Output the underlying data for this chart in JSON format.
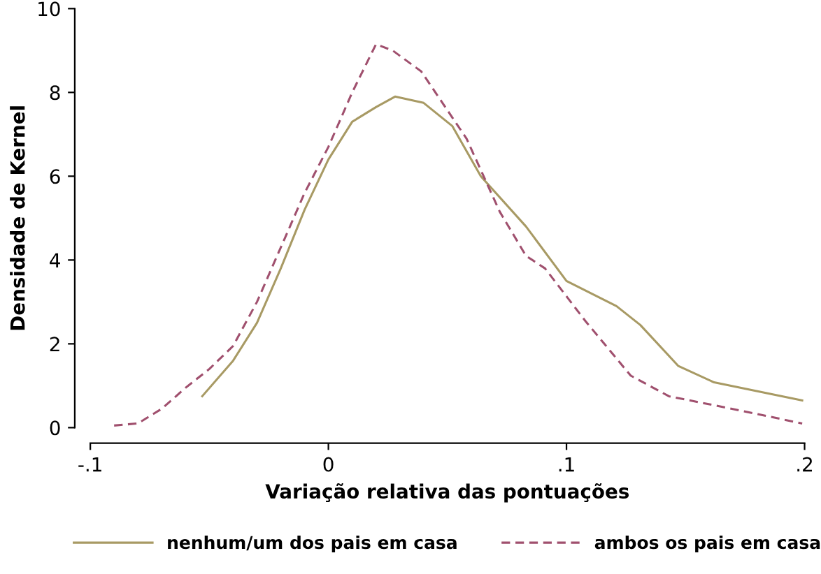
{
  "chart_data": {
    "type": "line",
    "xlabel": "Variação relativa das pontuações",
    "ylabel": "Densidade de Kernel",
    "xlim": [
      -0.1,
      0.2
    ],
    "xticks": [
      {
        "value": -0.1,
        "label": "-.1"
      },
      0,
      {
        "value": 0.1,
        "label": ".1"
      },
      {
        "value": 0.2,
        "label": ".2"
      }
    ],
    "ylim": [
      0,
      10
    ],
    "yticks": [
      0,
      2,
      4,
      6,
      8,
      10
    ],
    "grid": false,
    "legend": "bottom",
    "series": [
      {
        "name": "nenhum/um dos pais em casa",
        "color": "#a89a64",
        "line_style": "solid",
        "x": [
          -0.053,
          -0.04,
          -0.03,
          -0.02,
          -0.01,
          0,
          0.01,
          0.02,
          0.028,
          0.04,
          0.052,
          0.064,
          0.083,
          0.1,
          0.121,
          0.131,
          0.147,
          0.162,
          0.199
        ],
        "values": [
          0.75,
          1.6,
          2.5,
          3.8,
          5.2,
          6.4,
          7.3,
          7.65,
          7.9,
          7.75,
          7.2,
          6.0,
          4.8,
          3.5,
          2.9,
          2.45,
          1.47,
          1.08,
          0.65
        ]
      },
      {
        "name": "ambos os pais em casa",
        "color": "#a0506e",
        "line_style": "dashed",
        "x": [
          -0.09,
          -0.08,
          -0.07,
          -0.06,
          -0.05,
          -0.04,
          -0.03,
          -0.02,
          -0.01,
          0,
          0.01,
          0.02,
          0.027,
          0.039,
          0.058,
          0.072,
          0.083,
          0.091,
          0.108,
          0.127,
          0.143,
          0.172,
          0.199
        ],
        "values": [
          0.05,
          0.1,
          0.45,
          0.95,
          1.4,
          1.95,
          3.0,
          4.3,
          5.6,
          6.7,
          8.0,
          9.15,
          9.0,
          8.5,
          6.9,
          5.15,
          4.1,
          3.8,
          2.54,
          1.24,
          0.75,
          0.42,
          0.1
        ]
      }
    ]
  }
}
